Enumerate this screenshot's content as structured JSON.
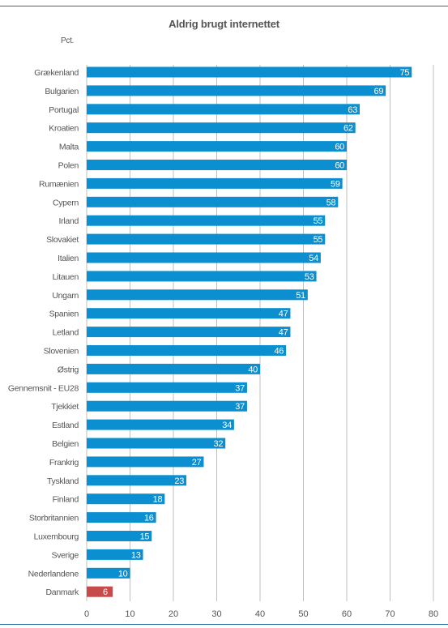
{
  "title": "Aldrig brugt internettet",
  "unit_label": "Pct.",
  "colors": {
    "bar": "#0b8fd0",
    "highlight": "#c84b4b",
    "grid": "#bfbfbf",
    "text": "#555555",
    "rule": "#1f6fa8"
  },
  "chart_data": {
    "type": "bar",
    "orientation": "horizontal",
    "title": "Aldrig brugt internettet",
    "ylabel": "Pct.",
    "xlim": [
      0,
      80
    ],
    "xticks": [
      "0",
      "10",
      "20",
      "30",
      "40",
      "50",
      "60",
      "70",
      "80"
    ],
    "grid": true,
    "highlighted_category": "Danmark",
    "categories": [
      "Grækenland",
      "Bulgarien",
      "Portugal",
      "Kroatien",
      "Malta",
      "Polen",
      "Rumænien",
      "Cypern",
      "Irland",
      "Slovakiet",
      "Italien",
      "Litauen",
      "Ungarn",
      "Spanien",
      "Letland",
      "Slovenien",
      "Østrig",
      "Gennemsnit - EU28",
      "Tjekkiet",
      "Estland",
      "Belgien",
      "Frankrig",
      "Tyskland",
      "Finland",
      "Storbritannien",
      "Luxembourg",
      "Sverige",
      "Nederlandene",
      "Danmark"
    ],
    "values": [
      75,
      69,
      63,
      62,
      60,
      60,
      59,
      58,
      55,
      55,
      54,
      53,
      51,
      47,
      47,
      46,
      40,
      37,
      37,
      34,
      32,
      27,
      23,
      18,
      16,
      15,
      13,
      10,
      6
    ]
  }
}
